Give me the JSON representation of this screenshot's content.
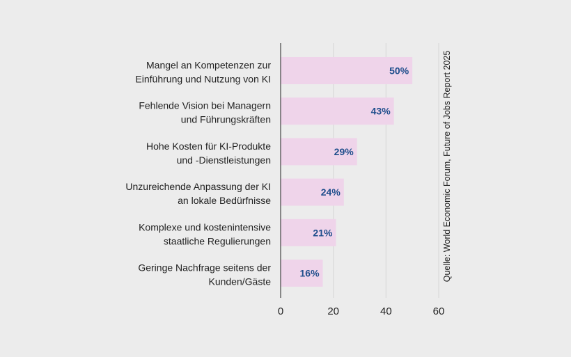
{
  "chart_data": {
    "type": "bar",
    "orientation": "horizontal",
    "categories": [
      [
        "Mangel an Kompetenzen zur",
        "Einführung und Nutzung von KI"
      ],
      [
        "Fehlende Vision bei Managern",
        "und Führungskräften"
      ],
      [
        "Hohe Kosten für KI-Produkte",
        "und -Dienstleistungen"
      ],
      [
        "Unzureichende Anpassung der KI",
        "an lokale Bedürfnisse"
      ],
      [
        "Komplexe und kostenintensive",
        "staatliche Regulierungen"
      ],
      [
        "Geringe Nachfrage seitens der",
        "Kunden/Gäste"
      ]
    ],
    "values": [
      50,
      43,
      29,
      24,
      21,
      16
    ],
    "value_labels": [
      "50%",
      "43%",
      "29%",
      "24%",
      "21%",
      "16%"
    ],
    "xlim": [
      0,
      60
    ],
    "xticks": [
      0,
      20,
      40,
      60
    ],
    "xtick_labels": [
      "0",
      "20",
      "40",
      "60"
    ],
    "grid": true,
    "source": "Quelle: World Economic Forum, Future of Jobs Report 2025",
    "colors": {
      "bar": "#efd4ea",
      "value_text": "#1f4e8c",
      "background": "#ececec",
      "grid": "#d6d6d6",
      "axis": "#444444"
    }
  }
}
